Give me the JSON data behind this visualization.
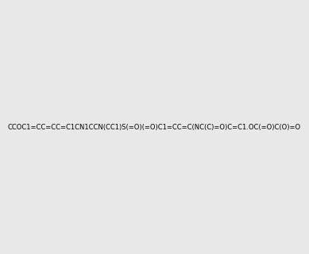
{
  "smiles": "CCOC1=CC=CC=C1CN1CCN(CC1)S(=O)(=O)C1=CC=C(NC(C)=O)C=C1.OC(=O)C(O)=O",
  "image_size": 300,
  "background_color": "#e8e8e8"
}
